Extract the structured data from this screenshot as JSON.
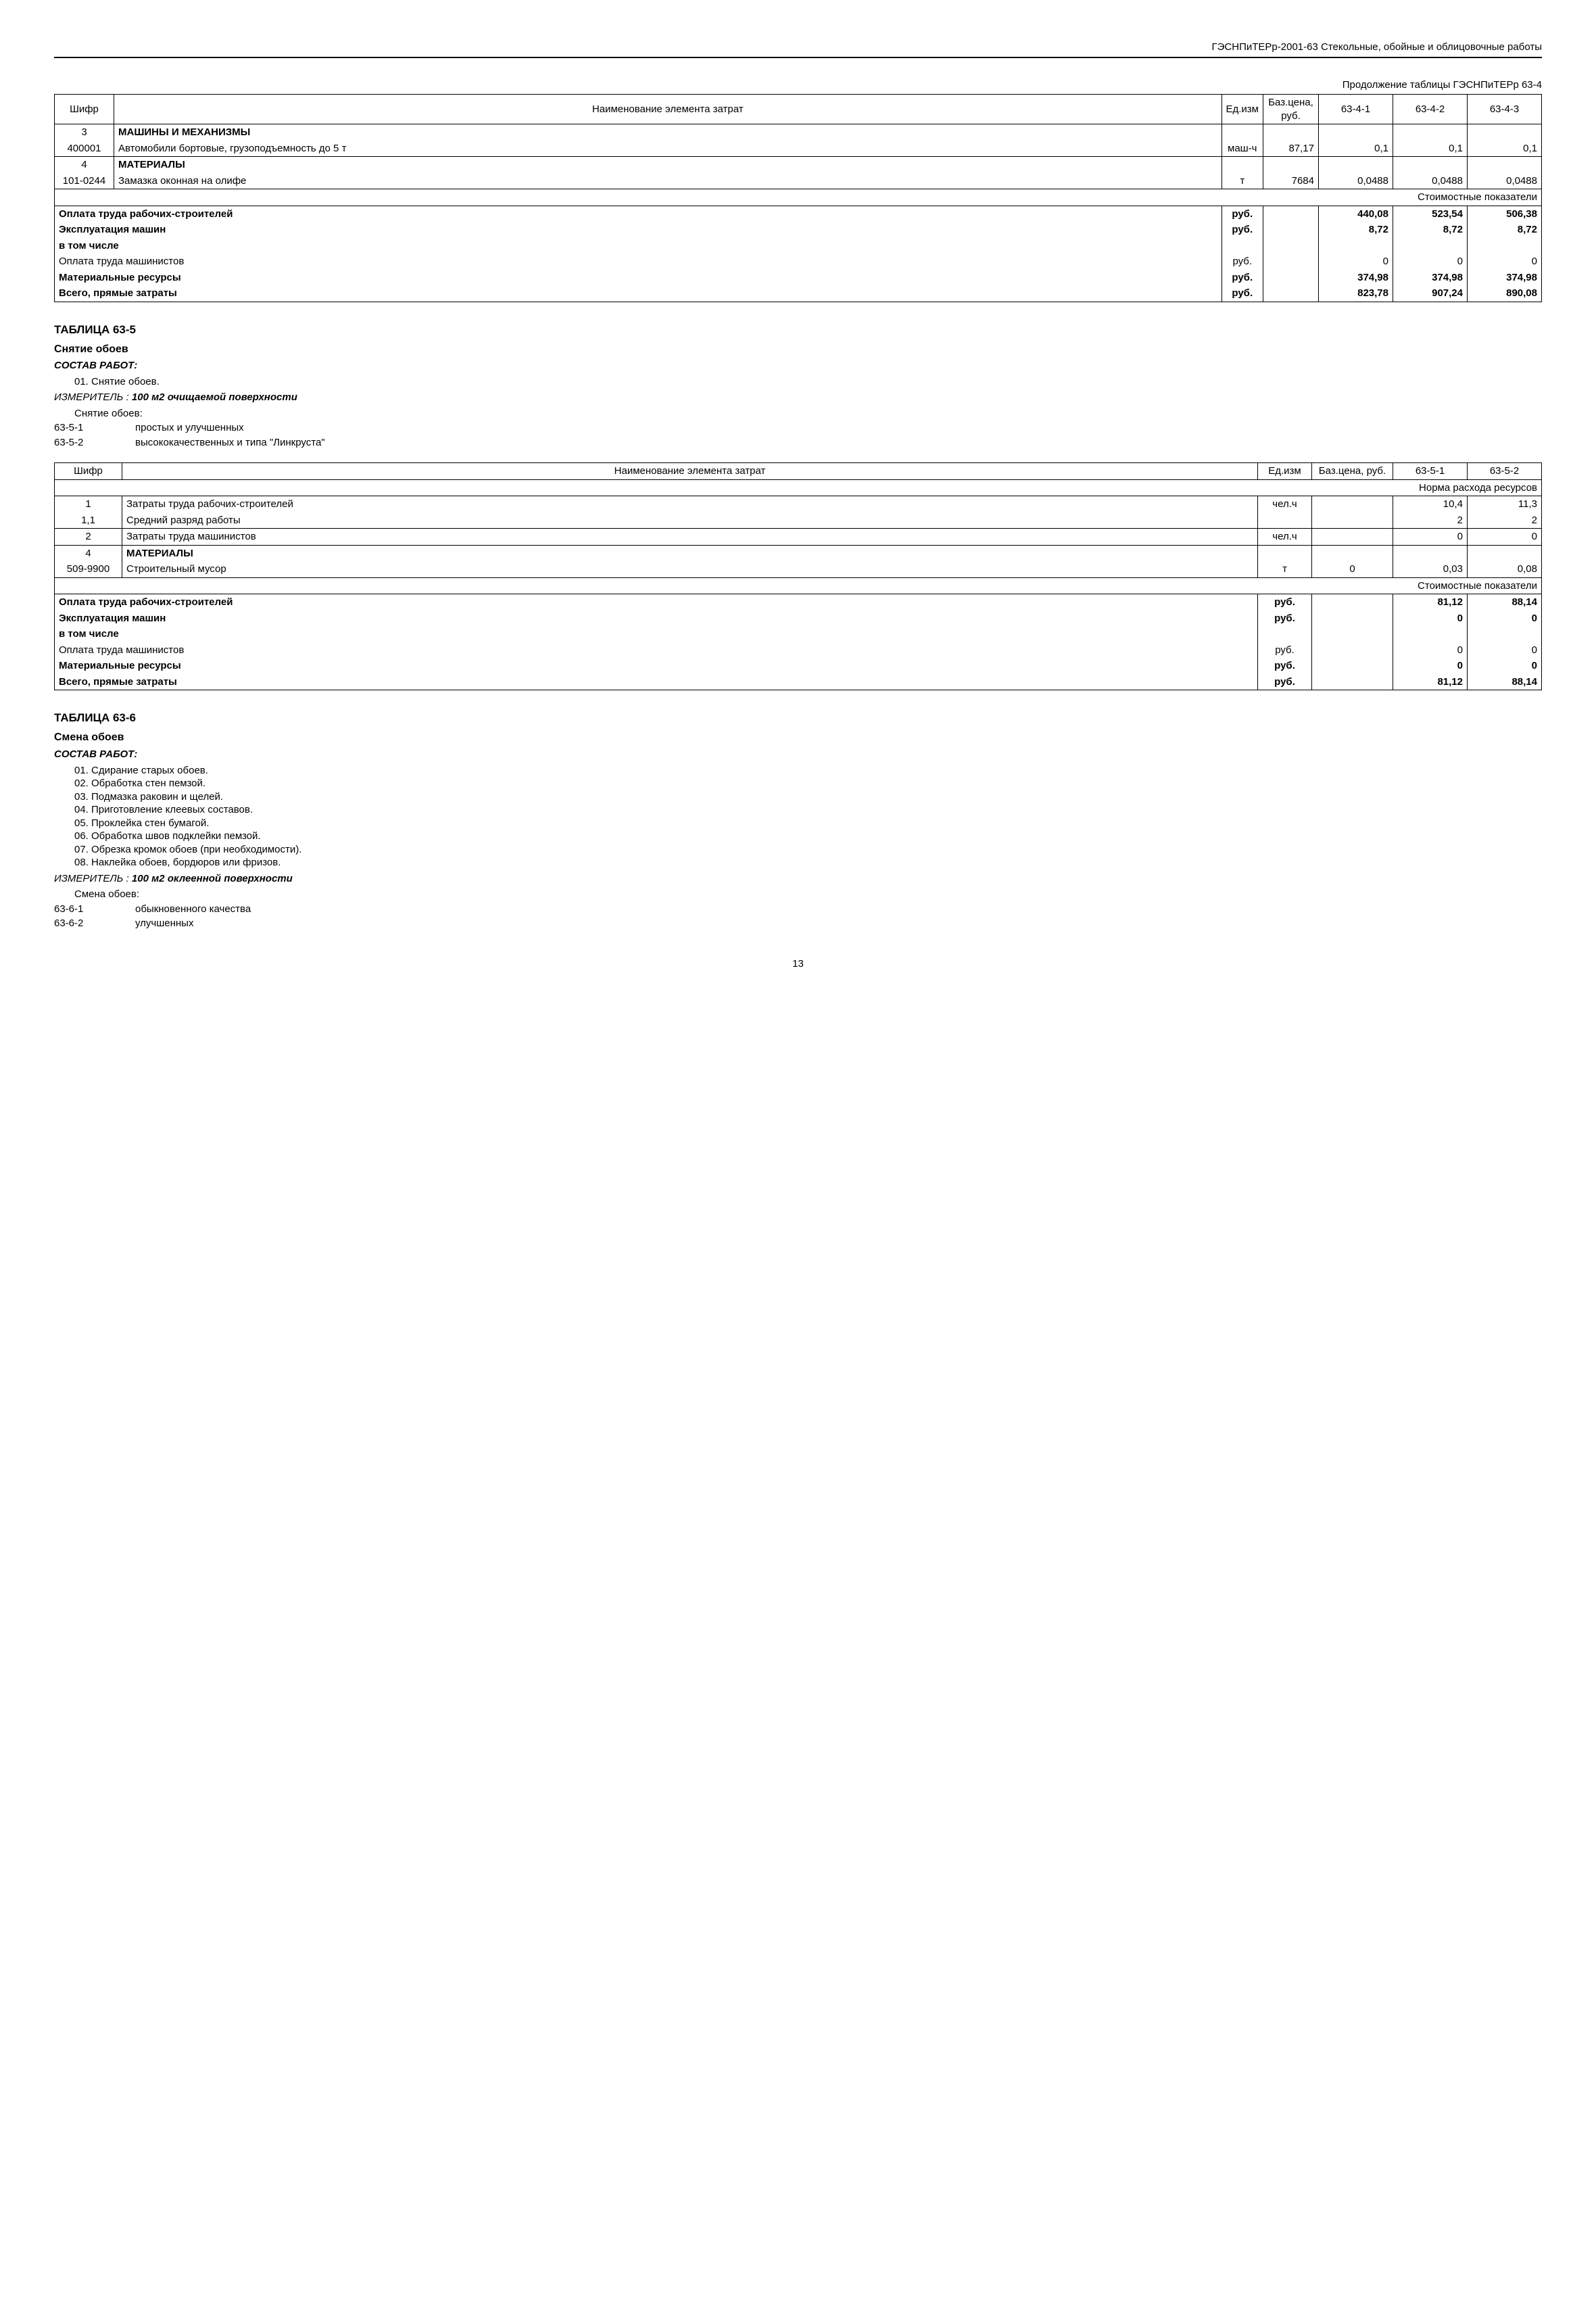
{
  "header": "ГЭСНПиТЕРр-2001-63 Стекольные, обойные и облицовочные работы",
  "continuation": "Продолжение таблицы ГЭСНПиТЕРр 63-4",
  "table634": {
    "cols": {
      "c1": "Шифр",
      "c2": "Наименование элемента затрат",
      "c3": "Ед.изм",
      "c4": "Баз.цена, руб.",
      "c5": "63-4-1",
      "c6": "63-4-2",
      "c7": "63-4-3"
    },
    "widths": {
      "c1": "88px",
      "c2": "auto",
      "c3": "58px",
      "c4": "82px",
      "c5": "110px",
      "c6": "110px",
      "c7": "110px"
    },
    "s3_code": "3",
    "s3_name": "МАШИНЫ И МЕХАНИЗМЫ",
    "r3a_code": "400001",
    "r3a_name": "Автомобили бортовые, грузоподъемность до 5 т",
    "r3a_unit": "маш-ч",
    "r3a_price": "87,17",
    "r3a_v1": "0,1",
    "r3a_v2": "0,1",
    "r3a_v3": "0,1",
    "s4_code": "4",
    "s4_name": "МАТЕРИАЛЫ",
    "r4a_code": "101-0244",
    "r4a_name": "Замазка оконная на олифе",
    "r4a_unit": "т",
    "r4a_price": "7684",
    "r4a_v1": "0,0488",
    "r4a_v2": "0,0488",
    "r4a_v3": "0,0488",
    "banner": "Стоимостные показатели",
    "cost": {
      "l1": "Оплата труда рабочих-строителей",
      "u": "руб.",
      "v1a": "440,08",
      "v1b": "523,54",
      "v1c": "506,38",
      "l2": "Эксплуатация машин",
      "v2a": "8,72",
      "v2b": "8,72",
      "v2c": "8,72",
      "l3": "в том числе",
      "l4": "Оплата труда машинистов",
      "v4a": "0",
      "v4b": "0",
      "v4c": "0",
      "l5": "Материальные ресурсы",
      "v5a": "374,98",
      "v5b": "374,98",
      "v5c": "374,98",
      "l6": "Всего, прямые затраты",
      "v6a": "823,78",
      "v6b": "907,24",
      "v6c": "890,08"
    }
  },
  "t635": {
    "title": "ТАБЛИЦА 63-5",
    "subtitle": "Снятие обоев",
    "composition_label": "СОСТАВ РАБОТ:",
    "composition_items": [
      "01. Снятие обоев."
    ],
    "measurer_lbl": "ИЗМЕРИТЕЛЬ : ",
    "measurer_val": "100 м2 очищаемой поверхности",
    "sub_header": "Снятие обоев:",
    "codes": [
      {
        "code": "63-5-1",
        "desc": "простых и улучшенных"
      },
      {
        "code": "63-5-2",
        "desc": "высококачественных и типа \"Линкруста\""
      }
    ],
    "cols": {
      "c1": "Шифр",
      "c2": "Наименование элемента затрат",
      "c3": "Ед.изм",
      "c4": "Баз.цена, руб.",
      "c5": "63-5-1",
      "c6": "63-5-2"
    },
    "widths": {
      "c1": "100px",
      "c2": "auto",
      "c3": "80px",
      "c4": "120px",
      "c5": "110px",
      "c6": "110px"
    },
    "banner1": "Норма расхода ресурсов",
    "s1_code": "1",
    "s1_name": "Затраты труда рабочих-строителей",
    "s1_unit": "чел.ч",
    "s1_v1": "10,4",
    "s1_v2": "11,3",
    "r11_code": "1,1",
    "r11_name": "Средний разряд работы",
    "r11_v1": "2",
    "r11_v2": "2",
    "s2_code": "2",
    "s2_name": "Затраты труда машинистов",
    "s2_unit": "чел.ч",
    "s2_v1": "0",
    "s2_v2": "0",
    "s4_code": "4",
    "s4_name": "МАТЕРИАЛЫ",
    "r4a_code": "509-9900",
    "r4a_name": "Строительный мусор",
    "r4a_unit": "т",
    "r4a_price": "0",
    "r4a_v1": "0,03",
    "r4a_v2": "0,08",
    "banner2": "Стоимостные показатели",
    "cost": {
      "l1": "Оплата труда рабочих-строителей",
      "u": "руб.",
      "v1a": "81,12",
      "v1b": "88,14",
      "l2": "Эксплуатация машин",
      "v2a": "0",
      "v2b": "0",
      "l3": "в том числе",
      "l4": "Оплата труда машинистов",
      "v4a": "0",
      "v4b": "0",
      "l5": "Материальные ресурсы",
      "v5a": "0",
      "v5b": "0",
      "l6": "Всего, прямые затраты",
      "v6a": "81,12",
      "v6b": "88,14"
    }
  },
  "t636": {
    "title": "ТАБЛИЦА 63-6",
    "subtitle": "Смена обоев",
    "composition_label": "СОСТАВ РАБОТ:",
    "composition_items": [
      "01. Сдирание старых обоев.",
      "02. Обработка стен пемзой.",
      "03. Подмазка раковин и щелей.",
      "04. Приготовление клеевых составов.",
      "05. Проклейка стен бумагой.",
      "06. Обработка швов подклейки пемзой.",
      "07. Обрезка кромок обоев (при необходимости).",
      "08. Наклейка обоев, бордюров или фризов."
    ],
    "measurer_lbl": "ИЗМЕРИТЕЛЬ : ",
    "measurer_val": "100 м2 оклеенной поверхности",
    "sub_header": "Смена обоев:",
    "codes": [
      {
        "code": "63-6-1",
        "desc": "обыкновенного качества"
      },
      {
        "code": "63-6-2",
        "desc": "улучшенных"
      }
    ]
  },
  "page": "13"
}
